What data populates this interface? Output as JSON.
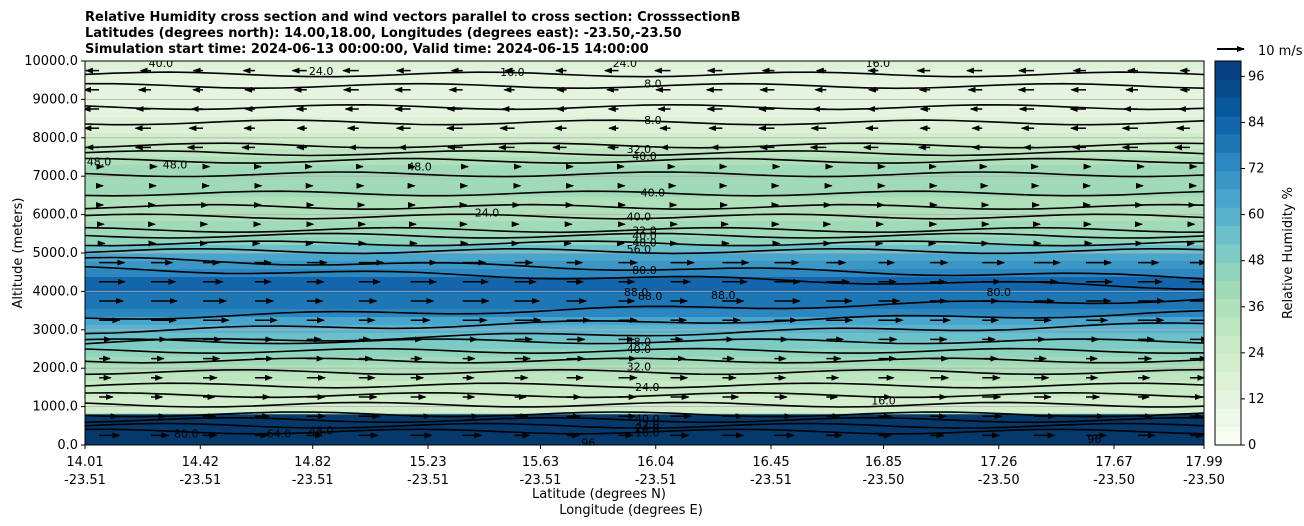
{
  "chart_data": {
    "type": "heatmap",
    "title_lines": [
      "Relative Humidity cross section and wind vectors parallel to cross section: CrosssectionB",
      "Latitudes (degrees north): 14.00,18.00, Longitudes (degrees east): -23.50,-23.50",
      "Simulation start time: 2024-06-13 00:00:00, Valid time: 2024-06-15 14:00:00"
    ],
    "ylabel": "Altitude (meters)",
    "xlabel_line1": "Latitude (degrees N)",
    "xlabel_line2": "Longitude (degrees E)",
    "ylim": [
      0,
      10000
    ],
    "y_ticks": [
      "0.0",
      "1000.0",
      "2000.0",
      "3000.0",
      "4000.0",
      "5000.0",
      "6000.0",
      "7000.0",
      "8000.0",
      "9000.0",
      "10000.0"
    ],
    "y_tick_values": [
      0,
      1000,
      2000,
      3000,
      4000,
      5000,
      6000,
      7000,
      8000,
      9000,
      10000
    ],
    "x_ticks_lat": [
      "14.01",
      "14.42",
      "14.82",
      "15.23",
      "15.63",
      "16.04",
      "16.45",
      "16.85",
      "17.26",
      "17.67",
      "17.99"
    ],
    "x_ticks_lon": [
      "-23.51",
      "-23.51",
      "-23.51",
      "-23.51",
      "-23.51",
      "-23.51",
      "-23.51",
      "-23.50",
      "-23.50",
      "-23.50",
      "-23.50"
    ],
    "x_tick_values": [
      14.01,
      14.42,
      14.82,
      15.23,
      15.63,
      16.04,
      16.45,
      16.85,
      17.26,
      17.67,
      17.99
    ],
    "xlim": [
      14.01,
      17.99
    ],
    "grid": "horizontal",
    "colorbar": {
      "label": "Relative Humidity %",
      "ticks": [
        "0",
        "12",
        "24",
        "36",
        "48",
        "60",
        "72",
        "84",
        "96"
      ],
      "tick_values": [
        0,
        12,
        24,
        36,
        48,
        60,
        72,
        84,
        96
      ],
      "range": [
        0,
        100
      ],
      "colors": [
        "#f7fcf0",
        "#eef8e9",
        "#e4f4df",
        "#dcf1d5",
        "#d3eecd",
        "#c8eac4",
        "#bde5bf",
        "#afe0ba",
        "#a0dab8",
        "#8fd4bc",
        "#7dcbc4",
        "#6bc0c9",
        "#59b3cf",
        "#4aa5cd",
        "#3b96c6",
        "#2c86bf",
        "#1f76b5",
        "#1366ab",
        "#08589e",
        "#084b8c",
        "#084081"
      ]
    },
    "wind_reference": {
      "label": "10 m/s",
      "speed": 10
    },
    "rh_profile": [
      {
        "alt": 0,
        "rh": 98
      },
      {
        "alt": 400,
        "rh": 90
      },
      {
        "alt": 800,
        "rh": 24
      },
      {
        "alt": 1200,
        "rh": 22
      },
      {
        "alt": 1800,
        "rh": 30
      },
      {
        "alt": 2400,
        "rh": 44
      },
      {
        "alt": 3000,
        "rh": 58
      },
      {
        "alt": 3600,
        "rh": 78
      },
      {
        "alt": 4200,
        "rh": 84
      },
      {
        "alt": 4800,
        "rh": 66
      },
      {
        "alt": 5400,
        "rh": 44
      },
      {
        "alt": 6000,
        "rh": 34
      },
      {
        "alt": 6800,
        "rh": 40
      },
      {
        "alt": 7400,
        "rh": 38
      },
      {
        "alt": 8000,
        "rh": 22
      },
      {
        "alt": 8600,
        "rh": 12
      },
      {
        "alt": 9200,
        "rh": 10
      },
      {
        "alt": 10000,
        "rh": 16
      }
    ],
    "contour_labels": [
      {
        "text": "40.0",
        "lat": 14.28,
        "alt": 9950
      },
      {
        "text": "24.0",
        "lat": 14.85,
        "alt": 9740
      },
      {
        "text": "16.0",
        "lat": 15.53,
        "alt": 9720
      },
      {
        "text": "24.0",
        "lat": 15.93,
        "alt": 9950
      },
      {
        "text": "16.0",
        "lat": 16.83,
        "alt": 9950
      },
      {
        "text": "8.0",
        "lat": 16.03,
        "alt": 9410
      },
      {
        "text": "8.0",
        "lat": 16.03,
        "alt": 8470
      },
      {
        "text": "32.0",
        "lat": 15.98,
        "alt": 7710
      },
      {
        "text": "40.0",
        "lat": 16.0,
        "alt": 7530
      },
      {
        "text": "48.0",
        "lat": 14.06,
        "alt": 7380
      },
      {
        "text": "48.0",
        "lat": 14.33,
        "alt": 7300
      },
      {
        "text": "48.0",
        "lat": 15.2,
        "alt": 7250
      },
      {
        "text": "40.0",
        "lat": 16.03,
        "alt": 6580
      },
      {
        "text": "24.0",
        "lat": 15.44,
        "alt": 6060
      },
      {
        "text": "40.0",
        "lat": 15.98,
        "alt": 5950
      },
      {
        "text": "32.0",
        "lat": 16.0,
        "alt": 5590
      },
      {
        "text": "40.0",
        "lat": 16.0,
        "alt": 5450
      },
      {
        "text": "48.0",
        "lat": 16.0,
        "alt": 5270
      },
      {
        "text": "56.0",
        "lat": 15.98,
        "alt": 5110
      },
      {
        "text": "80.0",
        "lat": 16.0,
        "alt": 4560
      },
      {
        "text": "88.0",
        "lat": 15.97,
        "alt": 3990
      },
      {
        "text": "88.0",
        "lat": 16.02,
        "alt": 3880
      },
      {
        "text": "88.0",
        "lat": 16.28,
        "alt": 3900
      },
      {
        "text": "80.0",
        "lat": 17.26,
        "alt": 3990
      },
      {
        "text": "48.0",
        "lat": 15.98,
        "alt": 2690
      },
      {
        "text": "40.0",
        "lat": 15.98,
        "alt": 2500
      },
      {
        "text": "32.0",
        "lat": 15.98,
        "alt": 2040
      },
      {
        "text": "24.0",
        "lat": 16.01,
        "alt": 1510
      },
      {
        "text": "16.0",
        "lat": 16.85,
        "alt": 1160
      },
      {
        "text": "80.0",
        "lat": 14.37,
        "alt": 300
      },
      {
        "text": "64.0",
        "lat": 14.7,
        "alt": 300
      },
      {
        "text": "48.0",
        "lat": 14.85,
        "alt": 380
      },
      {
        "text": "96",
        "lat": 15.8,
        "alt": 60
      },
      {
        "text": "40.0",
        "lat": 16.01,
        "alt": 690
      },
      {
        "text": "32.0",
        "lat": 16.01,
        "alt": 550
      },
      {
        "text": "24.0",
        "lat": 16.01,
        "alt": 440
      },
      {
        "text": "16.0",
        "lat": 16.01,
        "alt": 330
      },
      {
        "text": "96",
        "lat": 17.6,
        "alt": 150
      }
    ]
  }
}
